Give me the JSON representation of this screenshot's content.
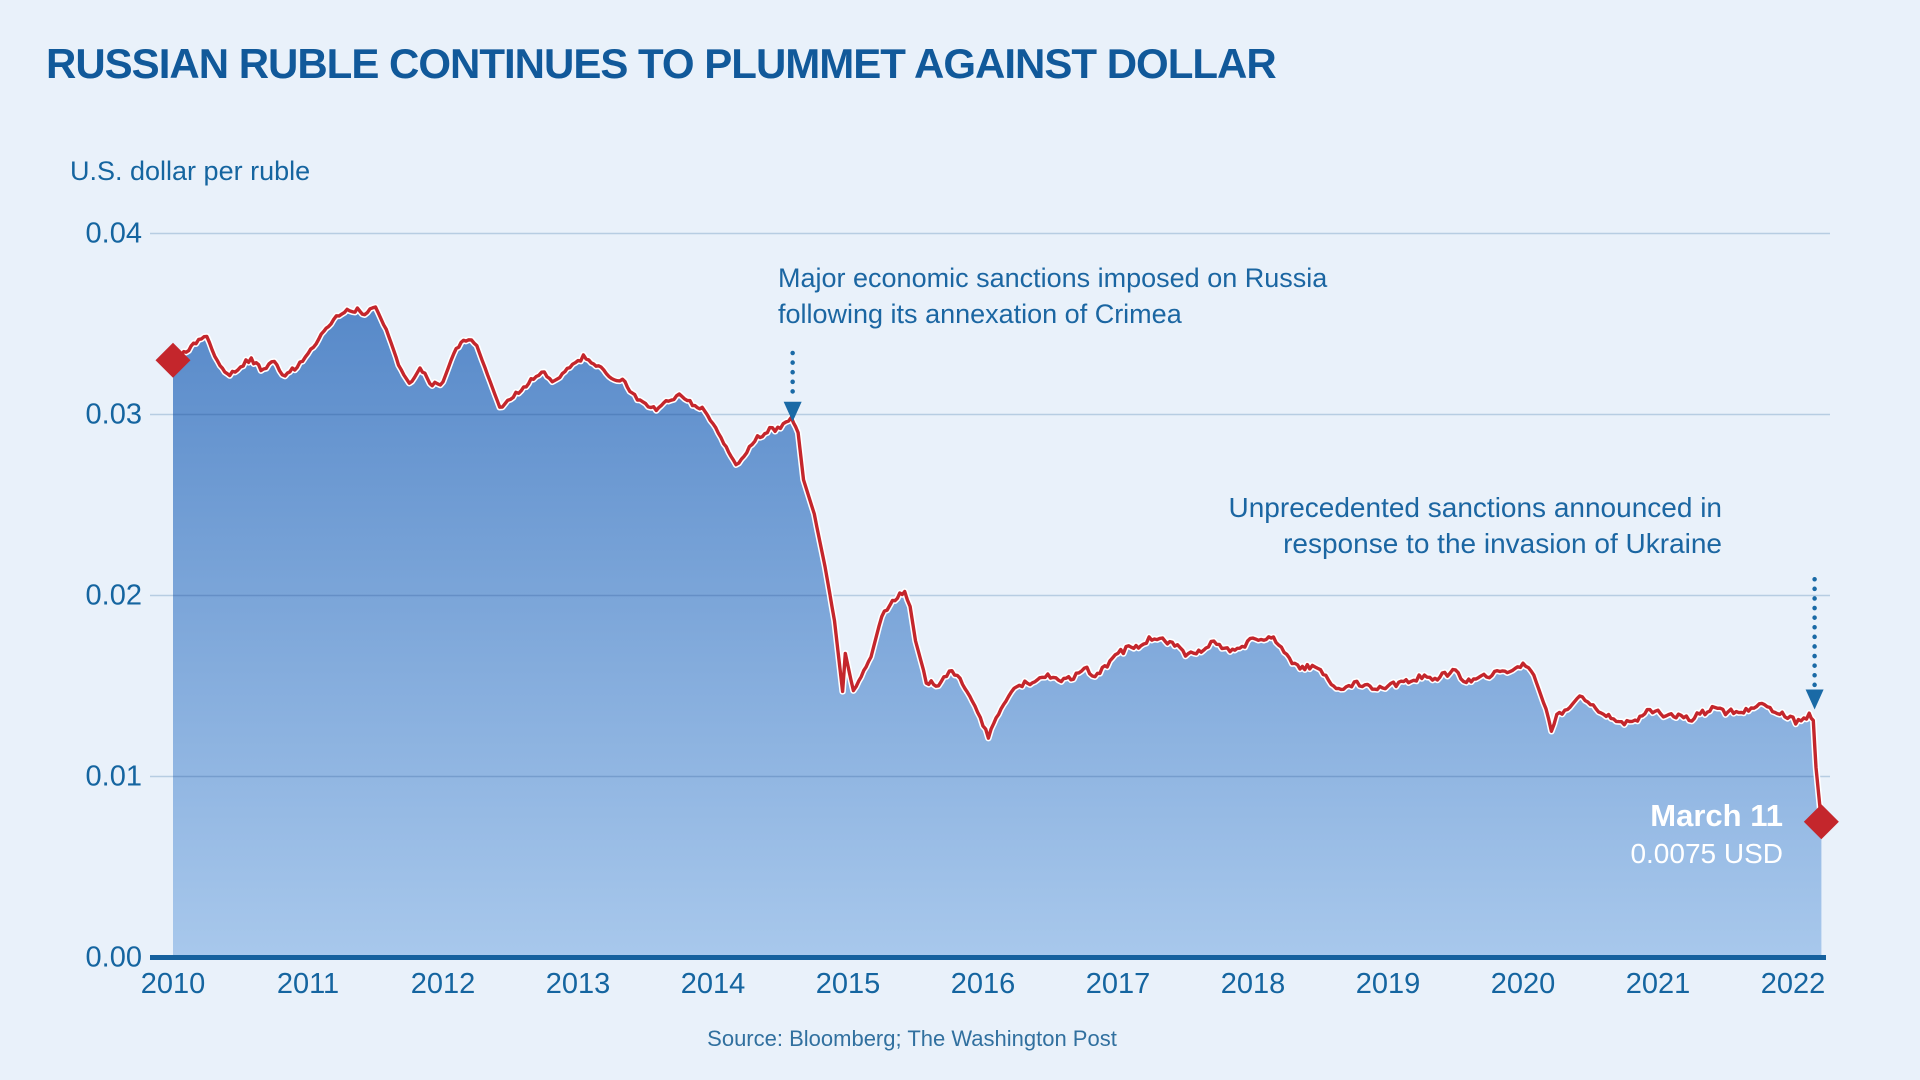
{
  "header": {
    "title": "RUSSIAN RUBLE CONTINUES TO PLUMMET AGAINST DOLLAR",
    "subtitle": "U.S. dollar per ruble"
  },
  "footer": {
    "source": "Source: Bloomberg; The Washington Post"
  },
  "colors": {
    "background": "#E9F1FA",
    "title_blue": "#11599A",
    "text_blue": "#1B66A2",
    "line_red": "#C4262C",
    "line_casing": "#FFFFFF",
    "marker_red": "#C4262C",
    "gridline": "#B7CDE2",
    "baseline": "#16619E",
    "area_top": "#4E82C5",
    "area_bottom": "#A8C8EC",
    "arrow_blue": "#1A6AA6",
    "endpoint_text": "#FFFFFF"
  },
  "annotations": {
    "crimea": {
      "line1": "Major economic sanctions imposed on Russia",
      "line2": "following its annexation of Crimea",
      "arrow": {
        "x_year": 2014.59,
        "from_value": 0.0334,
        "to_value": 0.0296
      }
    },
    "ukraine": {
      "line1": "Unprecedented sanctions announced in",
      "line2": "response to the invasion of Ukraine",
      "arrow": {
        "x_year": 2022.16,
        "from_value": 0.0209,
        "to_value": 0.0137
      }
    },
    "endpoint": {
      "date_label": "March 11",
      "value_label": "0.0075 USD"
    }
  },
  "chart_data": {
    "type": "area",
    "title": "Russian ruble continues to plummet against dollar",
    "ylabel": "U.S. dollar per ruble",
    "xlabel": "",
    "xlim": [
      2010,
      2022.3
    ],
    "ylim": [
      0,
      0.04
    ],
    "grid": true,
    "legend": false,
    "y_ticks": [
      {
        "value": 0.04,
        "label": "0.04"
      },
      {
        "value": 0.03,
        "label": "0.03"
      },
      {
        "value": 0.02,
        "label": "0.02"
      },
      {
        "value": 0.01,
        "label": "0.01"
      },
      {
        "value": 0.0,
        "label": "0.00"
      }
    ],
    "x_ticks": [
      {
        "year": 2010,
        "label": "2010"
      },
      {
        "year": 2011,
        "label": "2011"
      },
      {
        "year": 2012,
        "label": "2012"
      },
      {
        "year": 2013,
        "label": "2013"
      },
      {
        "year": 2014,
        "label": "2014"
      },
      {
        "year": 2015,
        "label": "2015"
      },
      {
        "year": 2016,
        "label": "2016"
      },
      {
        "year": 2017,
        "label": "2017"
      },
      {
        "year": 2018,
        "label": "2018"
      },
      {
        "year": 2019,
        "label": "2019"
      },
      {
        "year": 2020,
        "label": "2020"
      },
      {
        "year": 2021,
        "label": "2021"
      },
      {
        "year": 2022,
        "label": "2022"
      }
    ],
    "markers": [
      {
        "x": 2010.0,
        "y": 0.033,
        "name": "series-start"
      },
      {
        "x": 2022.21,
        "y": 0.0075,
        "name": "march-11-endpoint"
      }
    ],
    "series": [
      {
        "name": "U.S. dollar per ruble",
        "points": [
          [
            2010.0,
            0.033
          ],
          [
            2010.08,
            0.0334
          ],
          [
            2010.17,
            0.0339
          ],
          [
            2010.25,
            0.0343
          ],
          [
            2010.33,
            0.0329
          ],
          [
            2010.42,
            0.0321
          ],
          [
            2010.5,
            0.0327
          ],
          [
            2010.58,
            0.033
          ],
          [
            2010.67,
            0.0324
          ],
          [
            2010.75,
            0.0329
          ],
          [
            2010.83,
            0.0321
          ],
          [
            2010.92,
            0.0327
          ],
          [
            2011.0,
            0.0333
          ],
          [
            2011.08,
            0.0342
          ],
          [
            2011.17,
            0.0351
          ],
          [
            2011.25,
            0.0356
          ],
          [
            2011.33,
            0.0358
          ],
          [
            2011.42,
            0.0356
          ],
          [
            2011.5,
            0.0359
          ],
          [
            2011.58,
            0.0347
          ],
          [
            2011.67,
            0.0328
          ],
          [
            2011.75,
            0.0317
          ],
          [
            2011.83,
            0.0326
          ],
          [
            2011.92,
            0.0316
          ],
          [
            2012.0,
            0.0318
          ],
          [
            2012.08,
            0.0334
          ],
          [
            2012.17,
            0.0342
          ],
          [
            2012.25,
            0.0338
          ],
          [
            2012.33,
            0.0322
          ],
          [
            2012.42,
            0.0304
          ],
          [
            2012.5,
            0.0309
          ],
          [
            2012.58,
            0.0313
          ],
          [
            2012.67,
            0.0321
          ],
          [
            2012.75,
            0.0322
          ],
          [
            2012.83,
            0.0318
          ],
          [
            2012.92,
            0.0326
          ],
          [
            2013.0,
            0.0331
          ],
          [
            2013.08,
            0.0331
          ],
          [
            2013.17,
            0.0325
          ],
          [
            2013.25,
            0.0319
          ],
          [
            2013.33,
            0.0319
          ],
          [
            2013.42,
            0.031
          ],
          [
            2013.5,
            0.0306
          ],
          [
            2013.58,
            0.0303
          ],
          [
            2013.67,
            0.0307
          ],
          [
            2013.75,
            0.0312
          ],
          [
            2013.83,
            0.0306
          ],
          [
            2013.92,
            0.0304
          ],
          [
            2014.0,
            0.0295
          ],
          [
            2014.08,
            0.0284
          ],
          [
            2014.17,
            0.0272
          ],
          [
            2014.25,
            0.028
          ],
          [
            2014.33,
            0.0287
          ],
          [
            2014.42,
            0.0291
          ],
          [
            2014.5,
            0.0293
          ],
          [
            2014.58,
            0.0299
          ],
          [
            2014.63,
            0.029
          ],
          [
            2014.67,
            0.0264
          ],
          [
            2014.75,
            0.0245
          ],
          [
            2014.83,
            0.0216
          ],
          [
            2014.9,
            0.0186
          ],
          [
            2014.96,
            0.0147
          ],
          [
            2014.98,
            0.0168
          ],
          [
            2015.04,
            0.0147
          ],
          [
            2015.08,
            0.0153
          ],
          [
            2015.17,
            0.0166
          ],
          [
            2015.25,
            0.0189
          ],
          [
            2015.33,
            0.0197
          ],
          [
            2015.42,
            0.0202
          ],
          [
            2015.46,
            0.0194
          ],
          [
            2015.5,
            0.0175
          ],
          [
            2015.58,
            0.0153
          ],
          [
            2015.67,
            0.015
          ],
          [
            2015.75,
            0.0158
          ],
          [
            2015.83,
            0.0154
          ],
          [
            2015.92,
            0.0142
          ],
          [
            2016.0,
            0.0129
          ],
          [
            2016.04,
            0.0122
          ],
          [
            2016.08,
            0.013
          ],
          [
            2016.17,
            0.0142
          ],
          [
            2016.25,
            0.015
          ],
          [
            2016.33,
            0.0152
          ],
          [
            2016.42,
            0.0153
          ],
          [
            2016.5,
            0.0156
          ],
          [
            2016.58,
            0.0154
          ],
          [
            2016.67,
            0.0155
          ],
          [
            2016.75,
            0.016
          ],
          [
            2016.83,
            0.0156
          ],
          [
            2016.92,
            0.0161
          ],
          [
            2017.0,
            0.0168
          ],
          [
            2017.08,
            0.0171
          ],
          [
            2017.17,
            0.0172
          ],
          [
            2017.25,
            0.0177
          ],
          [
            2017.33,
            0.0175
          ],
          [
            2017.42,
            0.0173
          ],
          [
            2017.5,
            0.0168
          ],
          [
            2017.58,
            0.0168
          ],
          [
            2017.67,
            0.0173
          ],
          [
            2017.75,
            0.0173
          ],
          [
            2017.83,
            0.017
          ],
          [
            2017.92,
            0.0171
          ],
          [
            2018.0,
            0.0177
          ],
          [
            2018.08,
            0.0176
          ],
          [
            2018.17,
            0.0175
          ],
          [
            2018.25,
            0.0166
          ],
          [
            2018.33,
            0.0161
          ],
          [
            2018.42,
            0.016
          ],
          [
            2018.5,
            0.0159
          ],
          [
            2018.58,
            0.0151
          ],
          [
            2018.67,
            0.0148
          ],
          [
            2018.75,
            0.0152
          ],
          [
            2018.83,
            0.0151
          ],
          [
            2018.92,
            0.0149
          ],
          [
            2019.0,
            0.015
          ],
          [
            2019.08,
            0.0152
          ],
          [
            2019.17,
            0.0154
          ],
          [
            2019.25,
            0.0155
          ],
          [
            2019.33,
            0.0154
          ],
          [
            2019.42,
            0.0156
          ],
          [
            2019.5,
            0.0158
          ],
          [
            2019.58,
            0.0152
          ],
          [
            2019.67,
            0.0155
          ],
          [
            2019.75,
            0.0156
          ],
          [
            2019.83,
            0.0157
          ],
          [
            2019.92,
            0.016
          ],
          [
            2020.0,
            0.0162
          ],
          [
            2020.08,
            0.0156
          ],
          [
            2020.17,
            0.0137
          ],
          [
            2020.21,
            0.0125
          ],
          [
            2020.25,
            0.0134
          ],
          [
            2020.33,
            0.0138
          ],
          [
            2020.42,
            0.0145
          ],
          [
            2020.5,
            0.014
          ],
          [
            2020.58,
            0.0136
          ],
          [
            2020.67,
            0.0132
          ],
          [
            2020.75,
            0.0129
          ],
          [
            2020.83,
            0.0131
          ],
          [
            2020.92,
            0.0135
          ],
          [
            2021.0,
            0.0135
          ],
          [
            2021.08,
            0.0134
          ],
          [
            2021.17,
            0.0134
          ],
          [
            2021.25,
            0.0132
          ],
          [
            2021.33,
            0.0135
          ],
          [
            2021.42,
            0.0138
          ],
          [
            2021.5,
            0.0135
          ],
          [
            2021.58,
            0.0136
          ],
          [
            2021.67,
            0.0137
          ],
          [
            2021.75,
            0.0141
          ],
          [
            2021.83,
            0.0137
          ],
          [
            2021.92,
            0.0135
          ],
          [
            2022.0,
            0.0131
          ],
          [
            2022.06,
            0.013
          ],
          [
            2022.12,
            0.0134
          ],
          [
            2022.15,
            0.0131
          ],
          [
            2022.17,
            0.0105
          ],
          [
            2022.21,
            0.0075
          ]
        ]
      }
    ]
  }
}
